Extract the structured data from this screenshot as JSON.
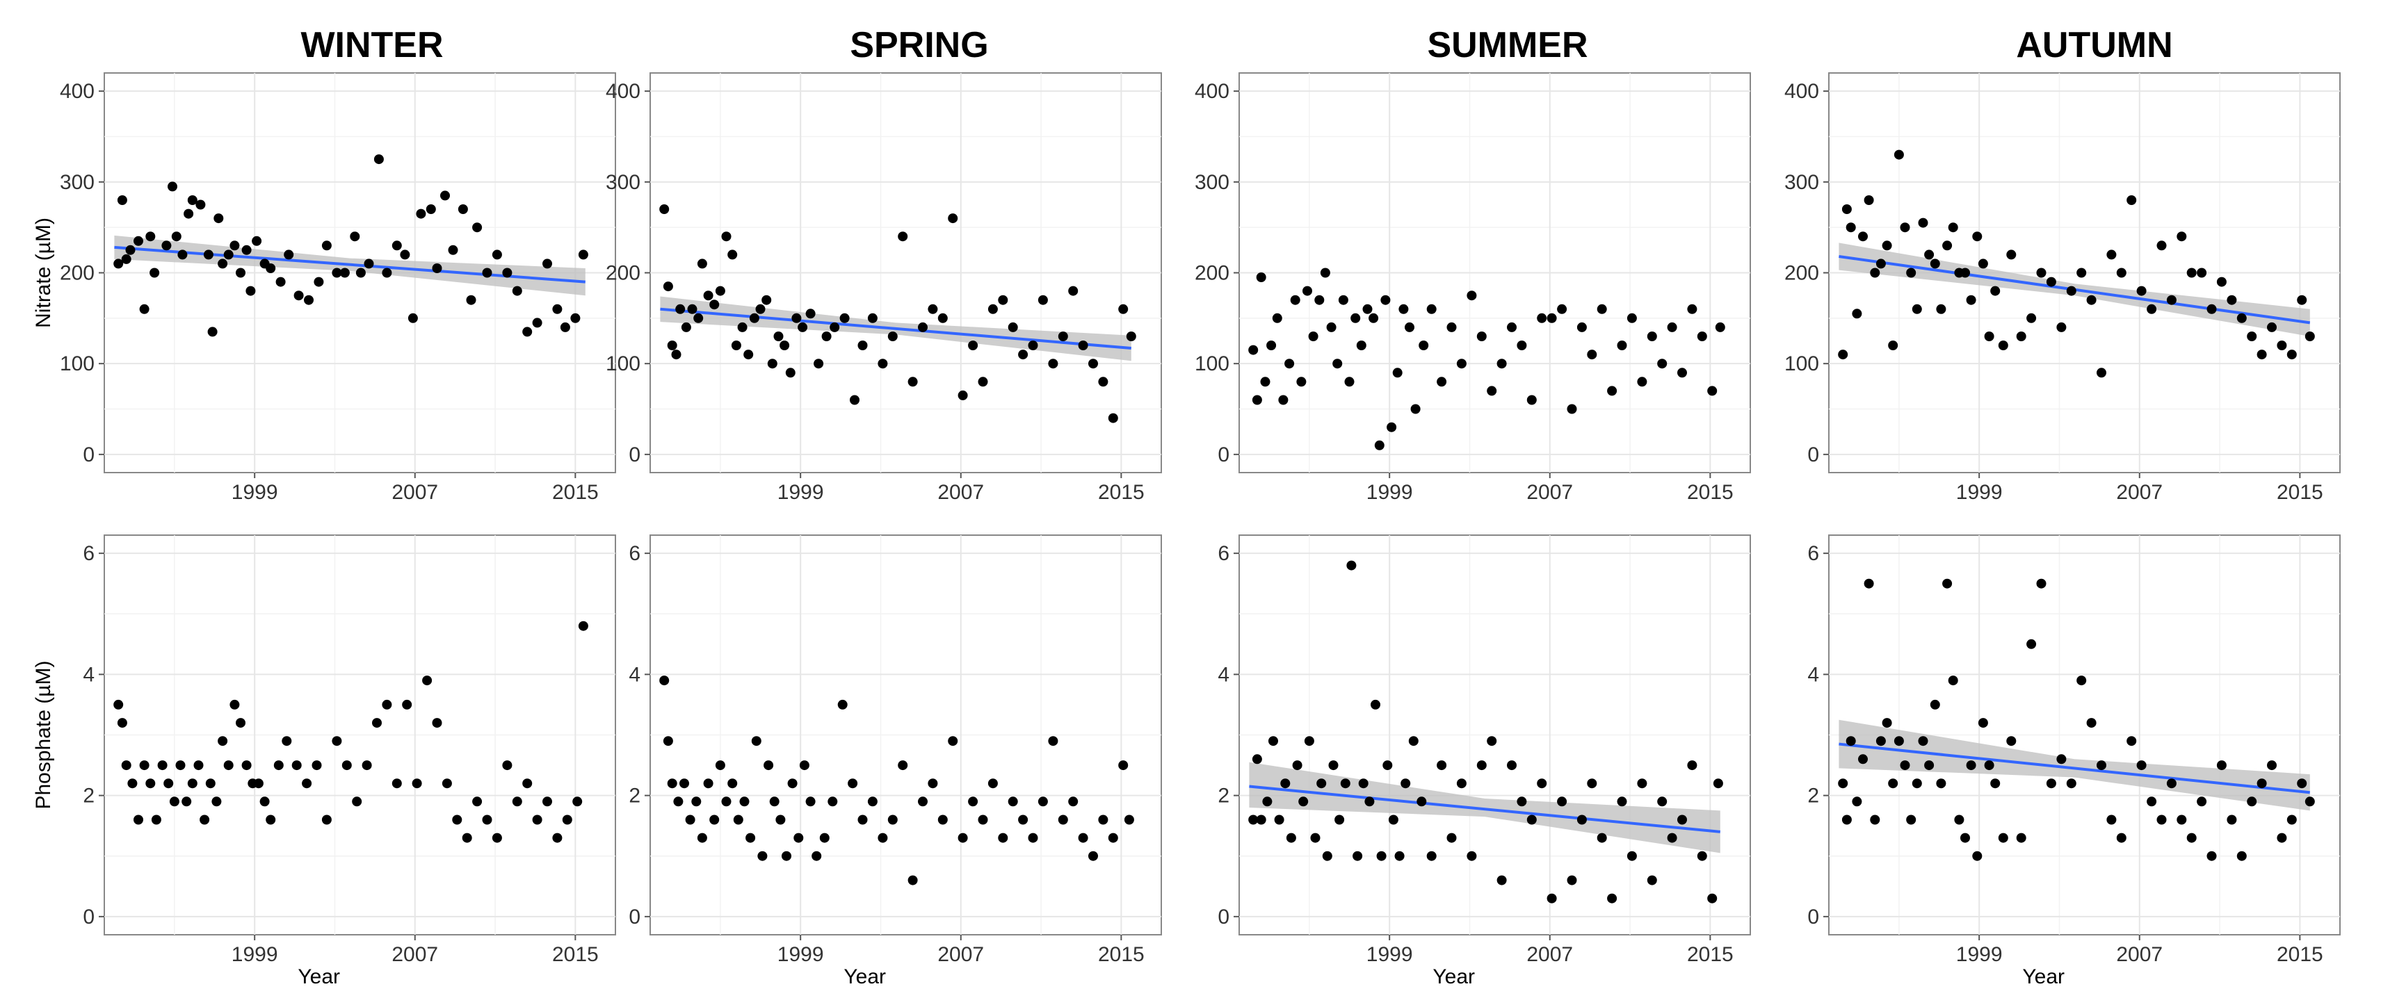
{
  "colors": {
    "points": "#000000",
    "fit_line": "#3366ff",
    "ci_band": "#bdbdbd"
  },
  "chart_data": [
    {
      "type": "scatter",
      "title": "WINTER",
      "ylabel": "Nitrate (µM)",
      "xlabel": "",
      "xlim": [
        1991.5,
        2017
      ],
      "ylim": [
        -20,
        420
      ],
      "xticks": [
        1999,
        2007,
        2015
      ],
      "yticks": [
        0,
        100,
        200,
        300,
        400
      ],
      "x": [
        1992.2,
        1992.4,
        1992.6,
        1992.8,
        1993.2,
        1993.5,
        1993.8,
        1994.0,
        1994.6,
        1994.9,
        1995.1,
        1995.4,
        1995.7,
        1995.9,
        1996.3,
        1996.7,
        1996.9,
        1997.2,
        1997.4,
        1997.7,
        1998.0,
        1998.3,
        1998.6,
        1998.8,
        1999.1,
        1999.5,
        1999.8,
        2000.3,
        2000.7,
        2001.2,
        2001.7,
        2002.2,
        2002.6,
        2003.1,
        2003.5,
        2004.0,
        2004.3,
        2004.7,
        2005.2,
        2005.6,
        2006.1,
        2006.5,
        2006.9,
        2007.3,
        2007.8,
        2008.1,
        2008.5,
        2008.9,
        2009.4,
        2009.8,
        2010.1,
        2010.6,
        2011.1,
        2011.6,
        2012.1,
        2012.6,
        2013.1,
        2013.6,
        2014.1,
        2014.5,
        2015.0,
        2015.4
      ],
      "y": [
        210,
        280,
        215,
        225,
        235,
        160,
        240,
        200,
        230,
        295,
        240,
        220,
        265,
        280,
        275,
        220,
        135,
        260,
        210,
        220,
        230,
        200,
        225,
        180,
        235,
        210,
        205,
        190,
        220,
        175,
        170,
        190,
        230,
        200,
        200,
        240,
        200,
        210,
        325,
        200,
        230,
        220,
        150,
        265,
        270,
        205,
        285,
        225,
        270,
        170,
        250,
        200,
        220,
        200,
        180,
        135,
        145,
        210,
        160,
        140,
        150,
        220
      ],
      "fit": {
        "x": [
          1992,
          2015.5
        ],
        "y": [
          228,
          190
        ],
        "ci": [
          [
            1992,
            215,
            241
          ],
          [
            2003.75,
            202,
            216
          ],
          [
            2015.5,
            175,
            205
          ]
        ]
      }
    },
    {
      "type": "scatter",
      "title": "SPRING",
      "ylabel": "",
      "xlabel": "",
      "xlim": [
        1991.5,
        2017
      ],
      "ylim": [
        -20,
        420
      ],
      "xticks": [
        1999,
        2007,
        2015
      ],
      "yticks": [
        0,
        100,
        200,
        300,
        400
      ],
      "x": [
        1992.2,
        1992.4,
        1992.6,
        1992.8,
        1993.0,
        1993.3,
        1993.6,
        1993.9,
        1994.1,
        1994.4,
        1994.7,
        1995.0,
        1995.3,
        1995.6,
        1995.8,
        1996.1,
        1996.4,
        1996.7,
        1997.0,
        1997.3,
        1997.6,
        1997.9,
        1998.2,
        1998.5,
        1998.8,
        1999.1,
        1999.5,
        1999.9,
        2000.3,
        2000.7,
        2001.2,
        2001.7,
        2002.1,
        2002.6,
        2003.1,
        2003.6,
        2004.1,
        2004.6,
        2005.1,
        2005.6,
        2006.1,
        2006.6,
        2007.1,
        2007.6,
        2008.1,
        2008.6,
        2009.1,
        2009.6,
        2010.1,
        2010.6,
        2011.1,
        2011.6,
        2012.1,
        2012.6,
        2013.1,
        2013.6,
        2014.1,
        2014.6,
        2015.1,
        2015.5
      ],
      "y": [
        270,
        185,
        120,
        110,
        160,
        140,
        160,
        150,
        210,
        175,
        165,
        180,
        240,
        220,
        120,
        140,
        110,
        150,
        160,
        170,
        100,
        130,
        120,
        90,
        150,
        140,
        155,
        100,
        130,
        140,
        150,
        60,
        120,
        150,
        100,
        130,
        240,
        80,
        140,
        160,
        150,
        260,
        65,
        120,
        80,
        160,
        170,
        140,
        110,
        120,
        170,
        100,
        130,
        180,
        120,
        100,
        80,
        40,
        160,
        130
      ],
      "fit": {
        "x": [
          1992,
          2015.5
        ],
        "y": [
          160,
          117
        ],
        "ci": [
          [
            1992,
            146,
            174
          ],
          [
            2003.75,
            132,
            145
          ],
          [
            2015.5,
            103,
            131
          ]
        ]
      }
    },
    {
      "type": "scatter",
      "title": "SUMMER",
      "ylabel": "",
      "xlabel": "",
      "xlim": [
        1991.5,
        2017
      ],
      "ylim": [
        -20,
        420
      ],
      "xticks": [
        1999,
        2007,
        2015
      ],
      "yticks": [
        0,
        100,
        200,
        300,
        400
      ],
      "x": [
        1992.2,
        1992.4,
        1992.6,
        1992.8,
        1993.1,
        1993.4,
        1993.7,
        1994.0,
        1994.3,
        1994.6,
        1994.9,
        1995.2,
        1995.5,
        1995.8,
        1996.1,
        1996.4,
        1996.7,
        1997.0,
        1997.3,
        1997.6,
        1997.9,
        1998.2,
        1998.5,
        1998.8,
        1999.1,
        1999.4,
        1999.7,
        2000.0,
        2000.3,
        2000.7,
        2001.1,
        2001.6,
        2002.1,
        2002.6,
        2003.1,
        2003.6,
        2004.1,
        2004.6,
        2005.1,
        2005.6,
        2006.1,
        2006.6,
        2007.1,
        2007.6,
        2008.1,
        2008.6,
        2009.1,
        2009.6,
        2010.1,
        2010.6,
        2011.1,
        2011.6,
        2012.1,
        2012.6,
        2013.1,
        2013.6,
        2014.1,
        2014.6,
        2015.1,
        2015.5
      ],
      "y": [
        115,
        60,
        195,
        80,
        120,
        150,
        60,
        100,
        170,
        80,
        180,
        130,
        170,
        200,
        140,
        100,
        170,
        80,
        150,
        120,
        160,
        150,
        10,
        170,
        30,
        90,
        160,
        140,
        50,
        120,
        160,
        80,
        140,
        100,
        175,
        130,
        70,
        100,
        140,
        120,
        60,
        150,
        150,
        160,
        50,
        140,
        110,
        160,
        70,
        120,
        150,
        80,
        130,
        100,
        140,
        90,
        160,
        130,
        70,
        140
      ],
      "fit": null
    },
    {
      "type": "scatter",
      "title": "AUTUMN",
      "ylabel": "",
      "xlabel": "",
      "xlim": [
        1991.5,
        2017
      ],
      "ylim": [
        -20,
        420
      ],
      "xticks": [
        1999,
        2007,
        2015
      ],
      "yticks": [
        0,
        100,
        200,
        300,
        400
      ],
      "x": [
        1992.2,
        1992.4,
        1992.6,
        1992.9,
        1993.2,
        1993.5,
        1993.8,
        1994.1,
        1994.4,
        1994.7,
        1995.0,
        1995.3,
        1995.6,
        1995.9,
        1996.2,
        1996.5,
        1996.8,
        1997.1,
        1997.4,
        1997.7,
        1998.0,
        1998.3,
        1998.6,
        1998.9,
        1999.2,
        1999.5,
        1999.8,
        2000.2,
        2000.6,
        2001.1,
        2001.6,
        2002.1,
        2002.6,
        2003.1,
        2003.6,
        2004.1,
        2004.6,
        2005.1,
        2005.6,
        2006.1,
        2006.6,
        2007.1,
        2007.6,
        2008.1,
        2008.6,
        2009.1,
        2009.6,
        2010.1,
        2010.6,
        2011.1,
        2011.6,
        2012.1,
        2012.6,
        2013.1,
        2013.6,
        2014.1,
        2014.6,
        2015.1,
        2015.5
      ],
      "y": [
        110,
        270,
        250,
        155,
        240,
        280,
        200,
        210,
        230,
        120,
        330,
        250,
        200,
        160,
        255,
        220,
        210,
        160,
        230,
        250,
        200,
        200,
        170,
        240,
        210,
        130,
        180,
        120,
        220,
        130,
        150,
        200,
        190,
        140,
        180,
        200,
        170,
        90,
        220,
        200,
        280,
        180,
        160,
        230,
        170,
        240,
        200,
        200,
        160,
        190,
        170,
        150,
        130,
        110,
        140,
        120,
        110,
        170,
        130
      ],
      "fit": {
        "x": [
          1992,
          2015.5
        ],
        "y": [
          218,
          145
        ],
        "ci": [
          [
            1992,
            203,
            233
          ],
          [
            2003.75,
            175,
            188
          ],
          [
            2015.5,
            130,
            160
          ]
        ]
      }
    },
    {
      "type": "scatter",
      "title": "",
      "ylabel": "Phosphate (µM)",
      "xlabel": "Year",
      "xlim": [
        1991.5,
        2017
      ],
      "ylim": [
        -0.3,
        6.3
      ],
      "xticks": [
        1999,
        2007,
        2015
      ],
      "yticks": [
        0,
        2,
        4,
        6
      ],
      "x": [
        1992.2,
        1992.4,
        1992.6,
        1992.9,
        1993.2,
        1993.5,
        1993.8,
        1994.1,
        1994.4,
        1994.7,
        1995.0,
        1995.3,
        1995.6,
        1995.9,
        1996.2,
        1996.5,
        1996.8,
        1997.1,
        1997.4,
        1997.7,
        1998.0,
        1998.3,
        1998.6,
        1998.9,
        1999.2,
        1999.5,
        1999.8,
        2000.2,
        2000.6,
        2001.1,
        2001.6,
        2002.1,
        2002.6,
        2003.1,
        2003.6,
        2004.1,
        2004.6,
        2005.1,
        2005.6,
        2006.1,
        2006.6,
        2007.1,
        2007.6,
        2008.1,
        2008.6,
        2009.1,
        2009.6,
        2010.1,
        2010.6,
        2011.1,
        2011.6,
        2012.1,
        2012.6,
        2013.1,
        2013.6,
        2014.1,
        2014.6,
        2015.1,
        2015.4
      ],
      "y": [
        3.5,
        3.2,
        2.5,
        2.2,
        1.6,
        2.5,
        2.2,
        1.6,
        2.5,
        2.2,
        1.9,
        2.5,
        1.9,
        2.2,
        2.5,
        1.6,
        2.2,
        1.9,
        2.9,
        2.5,
        3.5,
        3.2,
        2.5,
        2.2,
        2.2,
        1.9,
        1.6,
        2.5,
        2.9,
        2.5,
        2.2,
        2.5,
        1.6,
        2.9,
        2.5,
        1.9,
        2.5,
        3.2,
        3.5,
        2.2,
        3.5,
        2.2,
        3.9,
        3.2,
        2.2,
        1.6,
        1.3,
        1.9,
        1.6,
        1.3,
        2.5,
        1.9,
        2.2,
        1.6,
        1.9,
        1.3,
        1.6,
        1.9,
        4.8
      ],
      "fit": null
    },
    {
      "type": "scatter",
      "title": "",
      "ylabel": "",
      "xlabel": "Year",
      "xlim": [
        1991.5,
        2017
      ],
      "ylim": [
        -0.3,
        6.3
      ],
      "xticks": [
        1999,
        2007,
        2015
      ],
      "yticks": [
        0,
        2,
        4,
        6
      ],
      "x": [
        1992.2,
        1992.4,
        1992.6,
        1992.9,
        1993.2,
        1993.5,
        1993.8,
        1994.1,
        1994.4,
        1994.7,
        1995.0,
        1995.3,
        1995.6,
        1995.9,
        1996.2,
        1996.5,
        1996.8,
        1997.1,
        1997.4,
        1997.7,
        1998.0,
        1998.3,
        1998.6,
        1998.9,
        1999.2,
        1999.5,
        1999.8,
        2000.2,
        2000.6,
        2001.1,
        2001.6,
        2002.1,
        2002.6,
        2003.1,
        2003.6,
        2004.1,
        2004.6,
        2005.1,
        2005.6,
        2006.1,
        2006.6,
        2007.1,
        2007.6,
        2008.1,
        2008.6,
        2009.1,
        2009.6,
        2010.1,
        2010.6,
        2011.1,
        2011.6,
        2012.1,
        2012.6,
        2013.1,
        2013.6,
        2014.1,
        2014.6,
        2015.1,
        2015.4
      ],
      "y": [
        3.9,
        2.9,
        2.2,
        1.9,
        2.2,
        1.6,
        1.9,
        1.3,
        2.2,
        1.6,
        2.5,
        1.9,
        2.2,
        1.6,
        1.9,
        1.3,
        2.9,
        1.0,
        2.5,
        1.9,
        1.6,
        1.0,
        2.2,
        1.3,
        2.5,
        1.9,
        1.0,
        1.3,
        1.9,
        3.5,
        2.2,
        1.6,
        1.9,
        1.3,
        1.6,
        2.5,
        0.6,
        1.9,
        2.2,
        1.6,
        2.9,
        1.3,
        1.9,
        1.6,
        2.2,
        1.3,
        1.9,
        1.6,
        1.3,
        1.9,
        2.9,
        1.6,
        1.9,
        1.3,
        1.0,
        1.6,
        1.3,
        2.5,
        1.6
      ],
      "fit": null
    },
    {
      "type": "scatter",
      "title": "",
      "ylabel": "",
      "xlabel": "Year",
      "xlim": [
        1991.5,
        2017
      ],
      "ylim": [
        -0.3,
        6.3
      ],
      "xticks": [
        1999,
        2007,
        2015
      ],
      "yticks": [
        0,
        2,
        4,
        6
      ],
      "x": [
        1992.2,
        1992.4,
        1992.6,
        1992.9,
        1993.2,
        1993.5,
        1993.8,
        1994.1,
        1994.4,
        1994.7,
        1995.0,
        1995.3,
        1995.6,
        1995.9,
        1996.2,
        1996.5,
        1996.8,
        1997.1,
        1997.4,
        1997.7,
        1998.0,
        1998.3,
        1998.6,
        1998.9,
        1999.2,
        1999.5,
        1999.8,
        2000.2,
        2000.6,
        2001.1,
        2001.6,
        2002.1,
        2002.6,
        2003.1,
        2003.6,
        2004.1,
        2004.6,
        2005.1,
        2005.6,
        2006.1,
        2006.6,
        2007.1,
        2007.6,
        2008.1,
        2008.6,
        2009.1,
        2009.6,
        2010.1,
        2010.6,
        2011.1,
        2011.6,
        2012.1,
        2012.6,
        2013.1,
        2013.6,
        2014.1,
        2014.6,
        2015.1,
        2015.4
      ],
      "y": [
        1.6,
        2.6,
        1.6,
        1.9,
        2.9,
        1.6,
        2.2,
        1.3,
        2.5,
        1.9,
        2.9,
        1.3,
        2.2,
        1.0,
        2.5,
        1.6,
        2.2,
        5.8,
        1.0,
        2.2,
        1.9,
        3.5,
        1.0,
        2.5,
        1.6,
        1.0,
        2.2,
        2.9,
        1.9,
        1.0,
        2.5,
        1.3,
        2.2,
        1.0,
        2.5,
        2.9,
        0.6,
        2.5,
        1.9,
        1.6,
        2.2,
        0.3,
        1.9,
        0.6,
        1.6,
        2.2,
        1.3,
        0.3,
        1.9,
        1.0,
        2.2,
        0.6,
        1.9,
        1.3,
        1.6,
        2.5,
        1.0,
        0.3,
        2.2
      ],
      "fit": {
        "x": [
          1992,
          2015.5
        ],
        "y": [
          2.15,
          1.4
        ],
        "ci": [
          [
            1992,
            1.8,
            2.55
          ],
          [
            2003.75,
            1.65,
            1.95
          ],
          [
            2015.5,
            1.05,
            1.75
          ]
        ]
      }
    },
    {
      "type": "scatter",
      "title": "",
      "ylabel": "",
      "xlabel": "Year",
      "xlim": [
        1991.5,
        2017
      ],
      "ylim": [
        -0.3,
        6.3
      ],
      "xticks": [
        1999,
        2007,
        2015
      ],
      "yticks": [
        0,
        2,
        4,
        6
      ],
      "x": [
        1992.2,
        1992.4,
        1992.6,
        1992.9,
        1993.2,
        1993.5,
        1993.8,
        1994.1,
        1994.4,
        1994.7,
        1995.0,
        1995.3,
        1995.6,
        1995.9,
        1996.2,
        1996.5,
        1996.8,
        1997.1,
        1997.4,
        1997.7,
        1998.0,
        1998.3,
        1998.6,
        1998.9,
        1999.2,
        1999.5,
        1999.8,
        2000.2,
        2000.6,
        2001.1,
        2001.6,
        2002.1,
        2002.6,
        2003.1,
        2003.6,
        2004.1,
        2004.6,
        2005.1,
        2005.6,
        2006.1,
        2006.6,
        2007.1,
        2007.6,
        2008.1,
        2008.6,
        2009.1,
        2009.6,
        2010.1,
        2010.6,
        2011.1,
        2011.6,
        2012.1,
        2012.6,
        2013.1,
        2013.6,
        2014.1,
        2014.6,
        2015.1,
        2015.5
      ],
      "y": [
        2.2,
        1.6,
        2.9,
        1.9,
        2.6,
        5.5,
        1.6,
        2.9,
        3.2,
        2.2,
        2.9,
        2.5,
        1.6,
        2.2,
        2.9,
        2.5,
        3.5,
        2.2,
        5.5,
        3.9,
        1.6,
        1.3,
        2.5,
        1.0,
        3.2,
        2.5,
        2.2,
        1.3,
        2.9,
        1.3,
        4.5,
        5.5,
        2.2,
        2.6,
        2.2,
        3.9,
        3.2,
        2.5,
        1.6,
        1.3,
        2.9,
        2.5,
        1.9,
        1.6,
        2.2,
        1.6,
        1.3,
        1.9,
        1.0,
        2.5,
        1.6,
        1.0,
        1.9,
        2.2,
        2.5,
        1.3,
        1.6,
        2.2,
        1.9
      ],
      "fit": {
        "x": [
          1992,
          2015.5
        ],
        "y": [
          2.85,
          2.05
        ],
        "ci": [
          [
            1992,
            2.45,
            3.25
          ],
          [
            2003.75,
            2.3,
            2.6
          ],
          [
            2015.5,
            1.75,
            2.35
          ]
        ]
      }
    }
  ]
}
